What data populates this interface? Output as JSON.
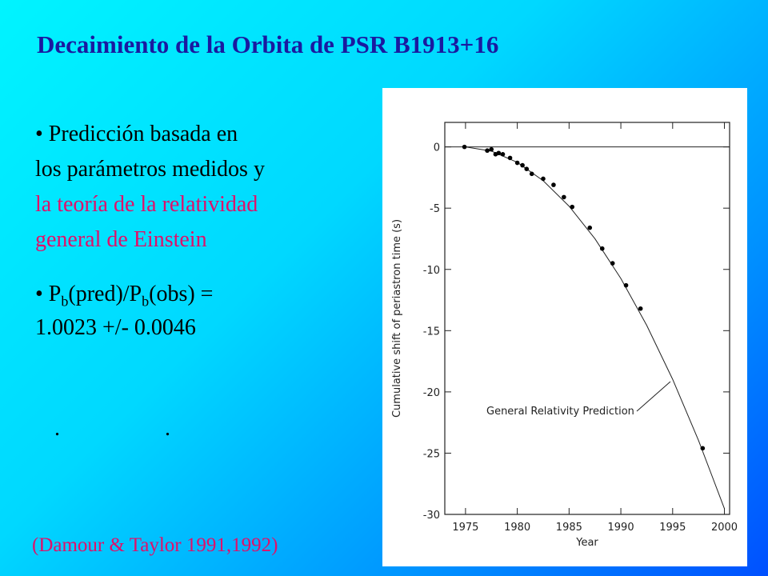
{
  "slide": {
    "title": "Decaimiento de la Orbita de PSR B1913+16",
    "bullet1": [
      "• Predicción basada en",
      "los parámetros medidos y",
      "la teoría de la relatividad",
      "general de Einstein"
    ],
    "bullet2": {
      "parts": [
        "• P",
        "b",
        "(pred)/P",
        "b",
        "(obs) ="
      ],
      "line2": "1.0023 +/- 0.0046"
    },
    "dots": [
      ".",
      "."
    ],
    "citation": "(Damour & Taylor 1991,1992)"
  },
  "chart_data": {
    "type": "scatter",
    "xlabel": "Year",
    "ylabel": "Cumulative shift of periastron time (s)",
    "x": [
      1974.9,
      1977.1,
      1977.5,
      1977.9,
      1978.2,
      1978.6,
      1979.3,
      1980,
      1980.5,
      1980.9,
      1981.4,
      1982.5,
      1983.5,
      1984.5,
      1985.3,
      1987,
      1988.2,
      1989.2,
      1990.5,
      1991.9,
      1997.9
    ],
    "values": [
      0.0,
      -0.3,
      -0.2,
      -0.6,
      -0.5,
      -0.6,
      -0.9,
      -1.3,
      -1.5,
      -1.8,
      -2.2,
      -2.6,
      -3.1,
      -4.1,
      -4.9,
      -6.6,
      -8.3,
      -9.5,
      -11.3,
      -13.2,
      -24.6
    ],
    "color": "#000000",
    "curve": {
      "label": "General Relativity Prediction",
      "x": [
        1975,
        1977.5,
        1980,
        1982.5,
        1985,
        1987.5,
        1990,
        1992.5,
        1995,
        1997.5,
        2000
      ],
      "values": [
        0.0,
        -0.34,
        -1.26,
        -2.76,
        -4.84,
        -7.5,
        -10.74,
        -14.57,
        -18.97,
        -23.96,
        -29.53
      ]
    },
    "hline": 0,
    "xlim": [
      1973,
      2000.5
    ],
    "ylim": [
      -30,
      2
    ],
    "xticks": [
      1975,
      1980,
      1985,
      1990,
      1995,
      2000
    ],
    "yticks": [
      0,
      -5,
      -10,
      -15,
      -20,
      -25,
      -30
    ]
  }
}
